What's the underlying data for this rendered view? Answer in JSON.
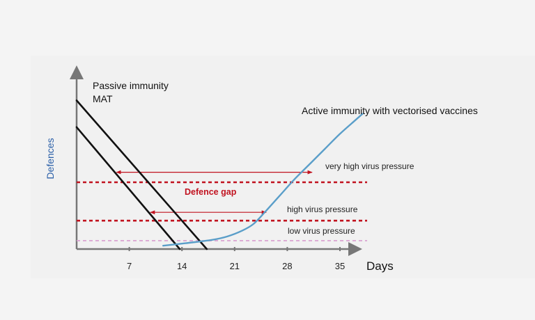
{
  "chart_data": {
    "type": "line",
    "x_axis": {
      "label": "Days",
      "ticks": [
        7,
        14,
        21,
        28,
        35
      ],
      "range": [
        0,
        37.5
      ]
    },
    "y_axis": {
      "label": "Defences",
      "range": [
        0,
        100
      ]
    },
    "series": [
      {
        "name": "Passive immunity MAT (upper)",
        "color": "#111111",
        "points": [
          [
            0,
            89
          ],
          [
            17.3,
            0
          ]
        ]
      },
      {
        "name": "Passive immunity MAT (lower)",
        "color": "#111111",
        "points": [
          [
            0,
            73
          ],
          [
            13.7,
            0
          ]
        ]
      },
      {
        "name": "Active immunity with vectorised vaccines",
        "color": "#5a9ec9",
        "points": [
          [
            11.5,
            2
          ],
          [
            14.5,
            3.5
          ],
          [
            18,
            5.5
          ],
          [
            20,
            7.5
          ],
          [
            22,
            11
          ],
          [
            23.5,
            15
          ],
          [
            25,
            22
          ],
          [
            27,
            32
          ],
          [
            29,
            42
          ],
          [
            31,
            51
          ],
          [
            33,
            60
          ],
          [
            35,
            69
          ],
          [
            37,
            77
          ],
          [
            38,
            81
          ]
        ]
      }
    ],
    "thresholds": [
      {
        "name": "very high virus pressure",
        "value": 40,
        "color": "#c1121f",
        "style": "dashed"
      },
      {
        "name": "high virus pressure",
        "value": 17,
        "color": "#c1121f",
        "style": "dashed"
      },
      {
        "name": "low virus pressure",
        "value": 5,
        "color": "#d9a3d0",
        "style": "dashed"
      }
    ],
    "gap_arrows": [
      {
        "y": 46,
        "x_start": 5.3,
        "x_end": 31.3,
        "color": "#c1121f"
      },
      {
        "y": 22,
        "x_start": 9.8,
        "x_end": 25.2,
        "color": "#c1121f"
      }
    ],
    "annotations": {
      "passive_title": "Passive immunity",
      "passive_subtitle": "MAT",
      "active_title": "Active immunity with vectorised vaccines",
      "gap_label": "Defence gap"
    }
  }
}
